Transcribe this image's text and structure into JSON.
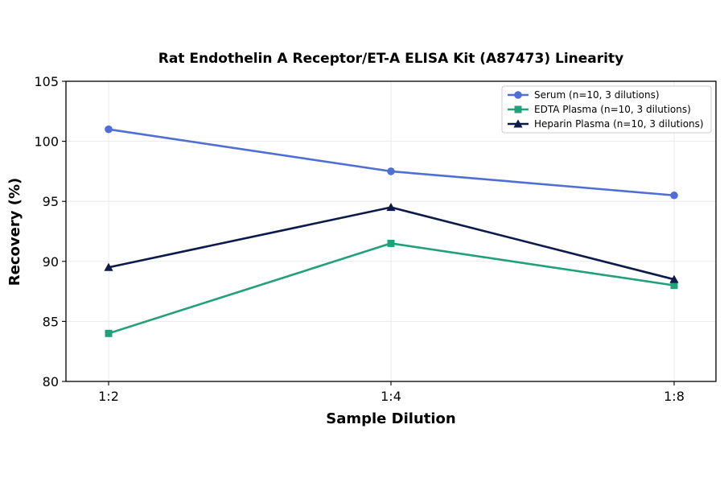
{
  "chart_data": {
    "type": "line",
    "title": "Rat Endothelin A Receptor/ET-A ELISA Kit (A87473) Linearity",
    "xlabel": "Sample Dilution",
    "ylabel": "Recovery (%)",
    "categories": [
      "1:2",
      "1:4",
      "1:8"
    ],
    "ylim": [
      80,
      105
    ],
    "yticks": [
      80,
      85,
      90,
      95,
      100,
      105
    ],
    "grid": true,
    "legend_position": "top-right",
    "series": [
      {
        "name": "Serum (n=10, 3 dilutions)",
        "values": [
          101,
          97.5,
          95.5
        ],
        "color": "#4f6fd4",
        "marker": "circle"
      },
      {
        "name": "EDTA Plasma (n=10, 3 dilutions)",
        "values": [
          84,
          91.5,
          88
        ],
        "color": "#22a07a",
        "marker": "square"
      },
      {
        "name": "Heparin Plasma (n=10, 3 dilutions)",
        "values": [
          89.5,
          94.5,
          88.5
        ],
        "color": "#0d1a4a",
        "marker": "triangle"
      }
    ]
  }
}
